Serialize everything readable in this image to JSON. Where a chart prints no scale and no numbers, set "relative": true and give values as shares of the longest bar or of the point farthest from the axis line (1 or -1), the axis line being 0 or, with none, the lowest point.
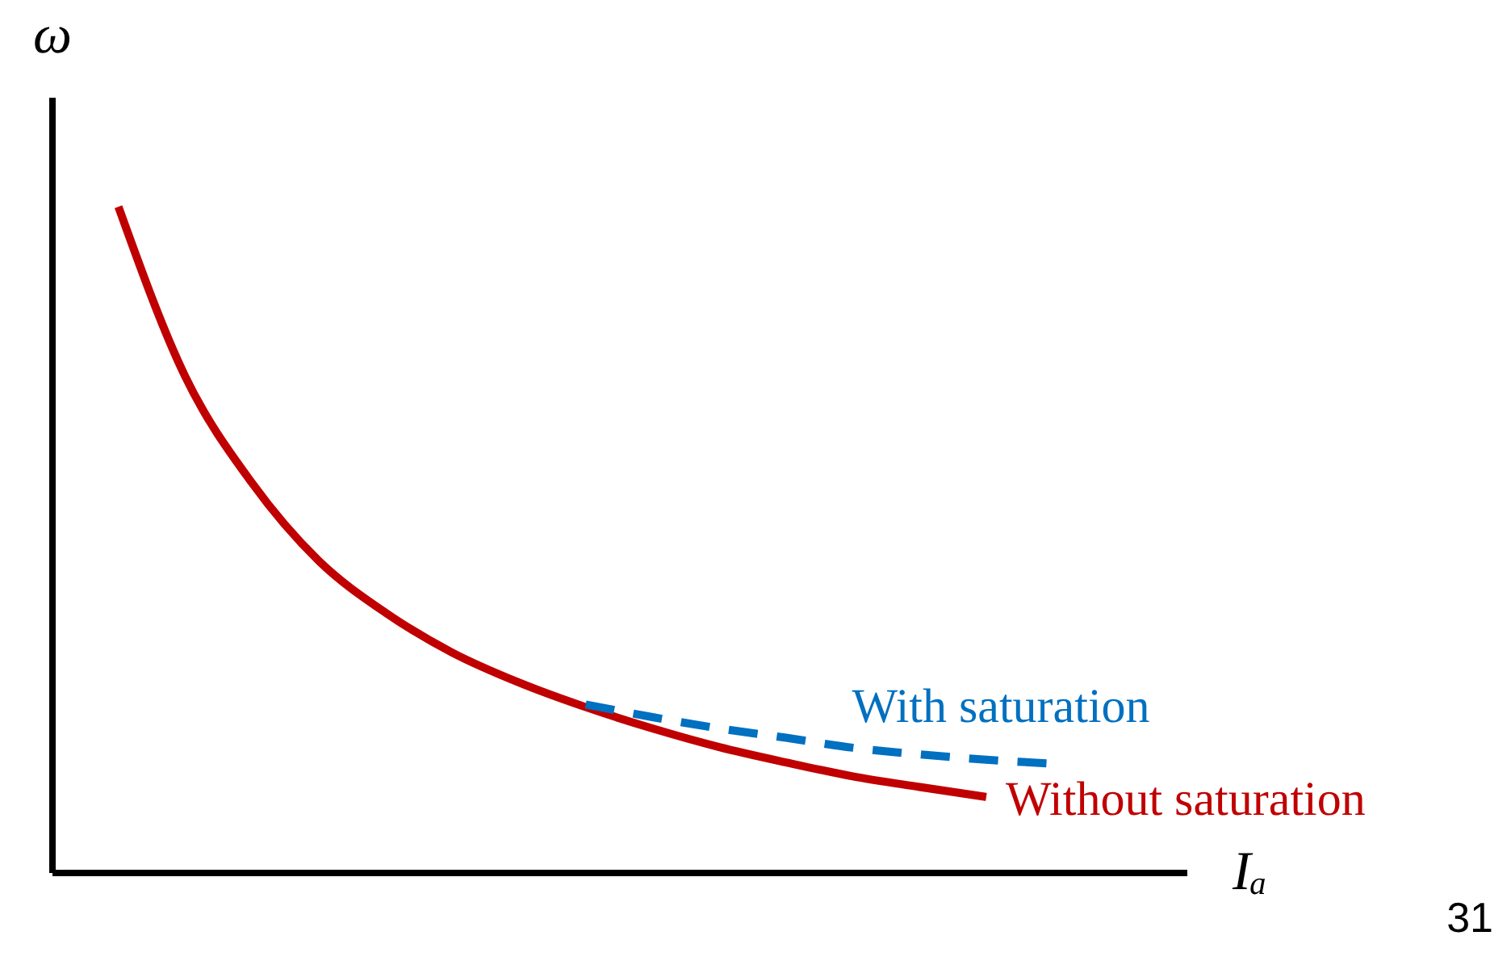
{
  "chart_data": {
    "type": "line",
    "relative": true,
    "xlabel": "Iₐ",
    "ylabel": "ω",
    "grid": false,
    "marker": "none",
    "annotations": [
      "31"
    ],
    "categories": [
      null,
      null,
      null,
      null,
      null,
      null,
      null,
      null,
      null,
      null,
      null,
      null,
      null,
      null,
      null,
      null,
      null,
      null
    ],
    "series": [
      {
        "name": "Without saturation",
        "color": "#c00000",
        "line_style": "solid",
        "values": [
          null,
          1.0,
          0.745,
          0.585,
          0.468,
          0.39,
          0.33,
          0.285,
          0.248,
          0.216,
          0.188,
          0.165,
          0.144,
          0.128,
          0.113,
          null,
          null,
          null
        ]
      },
      {
        "name": "With saturation",
        "color": "#0070c0",
        "line_style": "dashed",
        "values": [
          null,
          null,
          null,
          null,
          null,
          null,
          null,
          null,
          0.252,
          0.233,
          0.216,
          0.202,
          0.187,
          0.177,
          0.169,
          0.163,
          null,
          null
        ]
      }
    ]
  }
}
